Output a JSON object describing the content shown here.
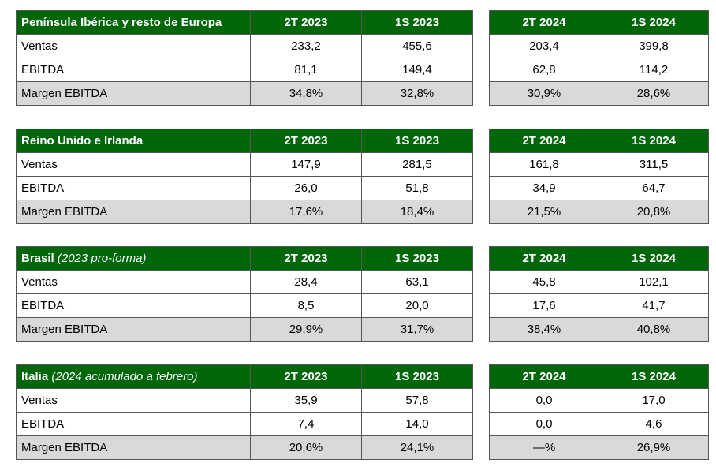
{
  "sections": [
    {
      "title": "Península Ibérica y resto de Europa",
      "subtitle": "",
      "cols_left": [
        "2T 2023",
        "1S 2023"
      ],
      "cols_right": [
        "2T 2024",
        "1S 2024"
      ],
      "rows": [
        {
          "label": "Ventas",
          "v": [
            "233,2",
            "455,6",
            "203,4",
            "399,8"
          ]
        },
        {
          "label": "EBITDA",
          "v": [
            "81,1",
            "149,4",
            "62,8",
            "114,2"
          ]
        },
        {
          "label": "Margen EBITDA",
          "v": [
            "34,8%",
            "32,8%",
            "30,9%",
            "28,6%"
          ]
        }
      ]
    },
    {
      "title": "Reino Unido e Irlanda",
      "subtitle": "",
      "cols_left": [
        "2T 2023",
        "1S 2023"
      ],
      "cols_right": [
        "2T 2024",
        "1S 2024"
      ],
      "rows": [
        {
          "label": "Ventas",
          "v": [
            "147,9",
            "281,5",
            "161,8",
            "311,5"
          ]
        },
        {
          "label": "EBITDA",
          "v": [
            "26,0",
            "51,8",
            "34,9",
            "64,7"
          ]
        },
        {
          "label": "Margen EBITDA",
          "v": [
            "17,6%",
            "18,4%",
            "21,5%",
            "20,8%"
          ]
        }
      ]
    },
    {
      "title": "Brasil",
      "subtitle": "(2023 pro-forma)",
      "cols_left": [
        "2T 2023",
        "1S 2023"
      ],
      "cols_right": [
        "2T 2024",
        "1S 2024"
      ],
      "rows": [
        {
          "label": "Ventas",
          "v": [
            "28,4",
            "63,1",
            "45,8",
            "102,1"
          ]
        },
        {
          "label": "EBITDA",
          "v": [
            "8,5",
            "20,0",
            "17,6",
            "41,7"
          ]
        },
        {
          "label": "Margen EBITDA",
          "v": [
            "29,9%",
            "31,7%",
            "38,4%",
            "40,8%"
          ]
        }
      ]
    },
    {
      "title": "Italia",
      "subtitle": "(2024 acumulado a febrero)",
      "cols_left": [
        "2T 2023",
        "1S 2023"
      ],
      "cols_right": [
        "2T 2024",
        "1S 2024"
      ],
      "rows": [
        {
          "label": "Ventas",
          "v": [
            "35,9",
            "57,8",
            "0,0",
            "17,0"
          ]
        },
        {
          "label": "EBITDA",
          "v": [
            "7,4",
            "14,0",
            "0,0",
            "4,6"
          ]
        },
        {
          "label": "Margen EBITDA",
          "v": [
            "20,6%",
            "24,1%",
            "—%",
            "26,9%"
          ]
        }
      ]
    }
  ],
  "colors": {
    "header_bg": "#00660a",
    "header_text": "#ffffff",
    "shade_bg": "#d9d9d9",
    "border": "#555555"
  }
}
